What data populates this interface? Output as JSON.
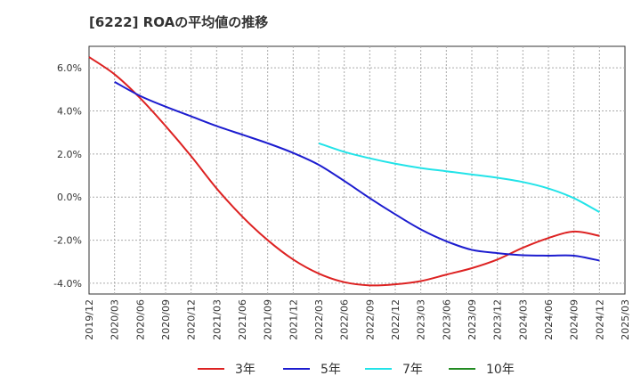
{
  "title": "[6222]  ROAの平均値の推移",
  "chart_data": {
    "type": "line",
    "title": "[6222]  ROAの平均値の推移",
    "ylim": [
      -4.5,
      7.0
    ],
    "yticks": [
      "6.0%",
      "4.0%",
      "2.0%",
      "0.0%",
      "-2.0%",
      "-4.0%"
    ],
    "ytick_values": [
      6,
      4,
      2,
      0,
      -2,
      -4
    ],
    "x_categories": [
      "2019/12",
      "2020/03",
      "2020/06",
      "2020/09",
      "2020/12",
      "2021/03",
      "2021/06",
      "2021/09",
      "2021/12",
      "2022/03",
      "2022/06",
      "2022/09",
      "2022/12",
      "2023/03",
      "2023/06",
      "2023/09",
      "2023/12",
      "2024/03",
      "2024/06",
      "2024/09",
      "2024/12",
      "2025/03"
    ],
    "grid": true,
    "legend_position": "bottom",
    "series": [
      {
        "name": "3年",
        "color": "#dd2222",
        "values": [
          6.5,
          5.7,
          4.6,
          3.3,
          1.9,
          0.4,
          -0.9,
          -2.0,
          -2.9,
          -3.55,
          -3.95,
          -4.1,
          -4.05,
          -3.9,
          -3.6,
          -3.3,
          -2.9,
          -2.35,
          -1.9,
          -1.6,
          -1.8,
          null
        ]
      },
      {
        "name": "5年",
        "color": "#1c1ccf",
        "values": [
          null,
          5.35,
          4.7,
          4.2,
          3.75,
          3.3,
          2.9,
          2.5,
          2.05,
          1.5,
          0.75,
          -0.05,
          -0.8,
          -1.5,
          -2.05,
          -2.45,
          -2.6,
          -2.7,
          -2.72,
          -2.72,
          -2.95,
          null
        ]
      },
      {
        "name": "7年",
        "color": "#22e3e8",
        "values": [
          null,
          null,
          null,
          null,
          null,
          null,
          null,
          null,
          null,
          2.5,
          2.1,
          1.8,
          1.55,
          1.35,
          1.2,
          1.05,
          0.9,
          0.7,
          0.4,
          -0.05,
          -0.7,
          null
        ]
      },
      {
        "name": "10年",
        "color": "#228b22",
        "values": []
      }
    ]
  }
}
